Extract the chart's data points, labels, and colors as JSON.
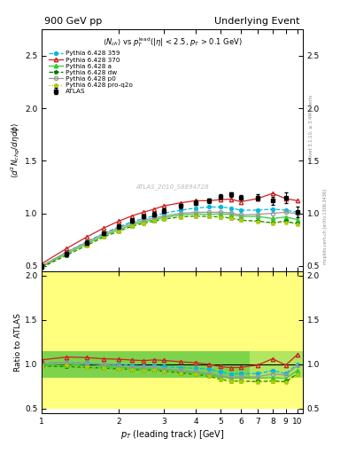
{
  "title_left": "900 GeV pp",
  "title_right": "Underlying Event",
  "ylabel_main": "\\langle d^2 N_{chg}/d\\eta d\\phi \\rangle",
  "ylabel_ratio": "Ratio to ATLAS",
  "xlabel": "p_{T} (leading track) [GeV]",
  "watermark": "ATLAS_2010_S8894728",
  "rivet_label": "Rivet 3.1.10, \\u2265 3.4M events",
  "mcplots_label": "mcplots.cern.ch [arXiv:1306.3436]",
  "xlim": [
    1.0,
    10.5
  ],
  "ylim_main": [
    0.45,
    2.75
  ],
  "ylim_ratio": [
    0.45,
    2.05
  ],
  "atlas_x": [
    1.0,
    1.25,
    1.5,
    1.75,
    2.0,
    2.25,
    2.5,
    2.75,
    3.0,
    3.5,
    4.0,
    4.5,
    5.0,
    5.5,
    6.0,
    7.0,
    8.0,
    9.0,
    10.0
  ],
  "atlas_y": [
    0.495,
    0.615,
    0.72,
    0.81,
    0.875,
    0.93,
    0.97,
    0.99,
    1.025,
    1.07,
    1.1,
    1.12,
    1.16,
    1.18,
    1.15,
    1.15,
    1.12,
    1.15,
    1.01
  ],
  "atlas_yerr": [
    0.02,
    0.02,
    0.02,
    0.02,
    0.02,
    0.02,
    0.02,
    0.02,
    0.02,
    0.02,
    0.02,
    0.02,
    0.02,
    0.02,
    0.02,
    0.03,
    0.04,
    0.05,
    0.05
  ],
  "py359_x": [
    1.0,
    1.25,
    1.5,
    1.75,
    2.0,
    2.25,
    2.5,
    2.75,
    3.0,
    3.5,
    4.0,
    4.5,
    5.0,
    5.5,
    6.0,
    7.0,
    8.0,
    9.0,
    10.0
  ],
  "py359_y": [
    0.5,
    0.63,
    0.73,
    0.81,
    0.87,
    0.92,
    0.95,
    0.975,
    1.0,
    1.03,
    1.05,
    1.06,
    1.06,
    1.05,
    1.03,
    1.03,
    1.04,
    1.03,
    1.01
  ],
  "py370_x": [
    1.0,
    1.25,
    1.5,
    1.75,
    2.0,
    2.25,
    2.5,
    2.75,
    3.0,
    3.5,
    4.0,
    4.5,
    5.0,
    5.5,
    6.0,
    7.0,
    8.0,
    9.0,
    10.0
  ],
  "py370_y": [
    0.52,
    0.665,
    0.775,
    0.86,
    0.925,
    0.975,
    1.01,
    1.04,
    1.07,
    1.1,
    1.12,
    1.12,
    1.13,
    1.135,
    1.11,
    1.14,
    1.19,
    1.14,
    1.12
  ],
  "pya_x": [
    1.0,
    1.25,
    1.5,
    1.75,
    2.0,
    2.25,
    2.5,
    2.75,
    3.0,
    3.5,
    4.0,
    4.5,
    5.0,
    5.5,
    6.0,
    7.0,
    8.0,
    9.0,
    10.0
  ],
  "pya_y": [
    0.49,
    0.615,
    0.71,
    0.79,
    0.845,
    0.89,
    0.92,
    0.94,
    0.96,
    0.985,
    0.995,
    0.99,
    0.995,
    0.99,
    0.97,
    0.97,
    0.95,
    0.965,
    0.94
  ],
  "pydw_x": [
    1.0,
    1.25,
    1.5,
    1.75,
    2.0,
    2.25,
    2.5,
    2.75,
    3.0,
    3.5,
    4.0,
    4.5,
    5.0,
    5.5,
    6.0,
    7.0,
    8.0,
    9.0,
    10.0
  ],
  "pydw_y": [
    0.485,
    0.6,
    0.695,
    0.775,
    0.83,
    0.875,
    0.905,
    0.925,
    0.945,
    0.965,
    0.975,
    0.97,
    0.965,
    0.955,
    0.935,
    0.925,
    0.91,
    0.925,
    0.9
  ],
  "pyp0_x": [
    1.0,
    1.25,
    1.5,
    1.75,
    2.0,
    2.25,
    2.5,
    2.75,
    3.0,
    3.5,
    4.0,
    4.5,
    5.0,
    5.5,
    6.0,
    7.0,
    8.0,
    9.0,
    10.0
  ],
  "pyp0_y": [
    0.5,
    0.63,
    0.725,
    0.805,
    0.86,
    0.905,
    0.935,
    0.955,
    0.975,
    1.0,
    1.01,
    1.01,
    1.01,
    1.005,
    0.985,
    0.99,
    1.0,
    1.01,
    0.995
  ],
  "pyproq2o_x": [
    1.0,
    1.25,
    1.5,
    1.75,
    2.0,
    2.25,
    2.5,
    2.75,
    3.0,
    3.5,
    4.0,
    4.5,
    5.0,
    5.5,
    6.0,
    7.0,
    8.0,
    9.0,
    10.0
  ],
  "pyproq2o_y": [
    0.485,
    0.605,
    0.695,
    0.775,
    0.83,
    0.875,
    0.905,
    0.925,
    0.945,
    0.965,
    0.975,
    0.97,
    0.965,
    0.955,
    0.935,
    0.92,
    0.905,
    0.915,
    0.895
  ],
  "color_atlas": "#000000",
  "color_359": "#00bbdd",
  "color_370": "#cc2222",
  "color_a": "#33cc33",
  "color_dw": "#007700",
  "color_p0": "#999999",
  "color_proq2o": "#aacc00",
  "yticks_main": [
    0.5,
    1.0,
    1.5,
    2.0,
    2.5
  ],
  "yticks_ratio": [
    0.5,
    1.0,
    1.5,
    2.0
  ],
  "xticks": [
    1,
    2,
    3,
    4,
    5,
    6,
    7,
    8,
    9,
    10
  ]
}
